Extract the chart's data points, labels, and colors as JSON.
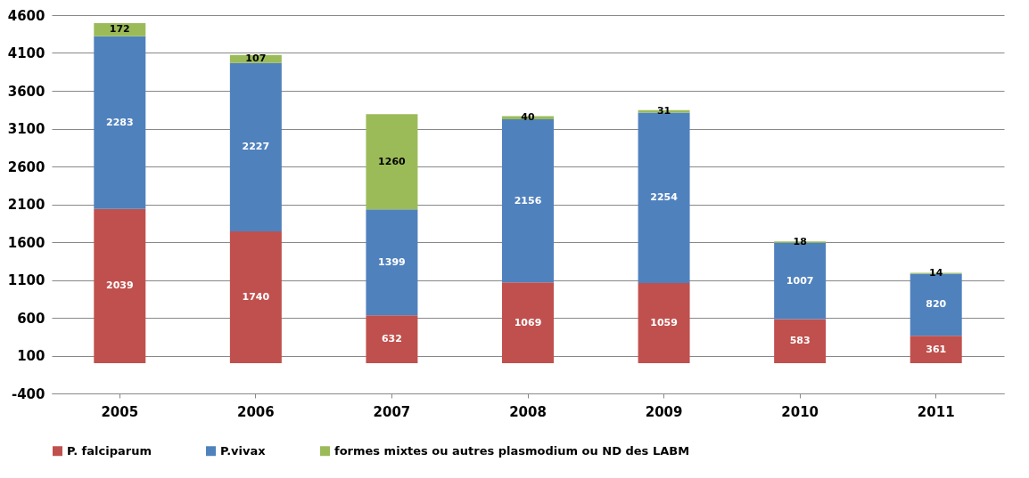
{
  "chart_data": {
    "type": "bar",
    "stacked": true,
    "data_labels": true,
    "grid": "y",
    "legend": "bottom",
    "categories": [
      "2005",
      "2006",
      "2007",
      "2008",
      "2009",
      "2010",
      "2011"
    ],
    "series": [
      {
        "name": "P. falciparum",
        "color": "#c0504d",
        "values": [
          2039,
          1740,
          632,
          1069,
          1059,
          583,
          361
        ]
      },
      {
        "name": "P.vivax",
        "color": "#4f81bd",
        "values": [
          2283,
          2227,
          1399,
          2156,
          2254,
          1007,
          820
        ]
      },
      {
        "name": "formes mixtes ou autres plasmodium ou ND des LABM",
        "color": "#9bbb59",
        "values": [
          172,
          107,
          1260,
          40,
          31,
          18,
          14
        ]
      }
    ],
    "ylim": [
      -400,
      4600
    ],
    "yticks": [
      -400,
      100,
      600,
      1100,
      1600,
      2100,
      2600,
      3100,
      3600,
      4100,
      4600
    ]
  }
}
